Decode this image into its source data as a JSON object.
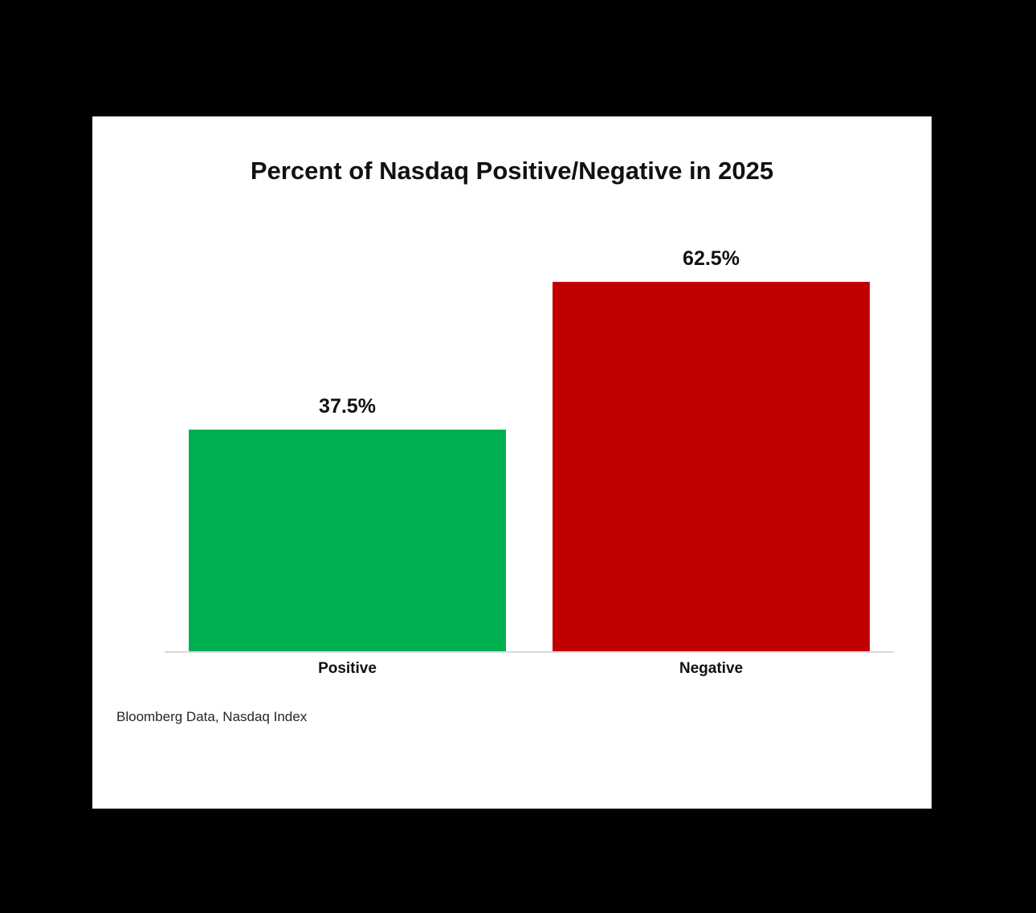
{
  "page": {
    "background_color": "#000000",
    "card_background_color": "#ffffff"
  },
  "chart_data": {
    "type": "bar",
    "title": "Percent of Nasdaq Positive/Negative in 2025",
    "categories": [
      "Positive",
      "Negative"
    ],
    "values": [
      37.5,
      62.5
    ],
    "value_labels": [
      "37.5%",
      "62.5%"
    ],
    "bar_colors": [
      "#00B050",
      "#C00000"
    ],
    "xlabel": "",
    "ylabel": "",
    "ylim": [
      0,
      70
    ],
    "grid": false,
    "legend": "none",
    "axis_line_color": "#d9d9d9",
    "source": "Bloomberg Data, Nasdaq Index"
  }
}
